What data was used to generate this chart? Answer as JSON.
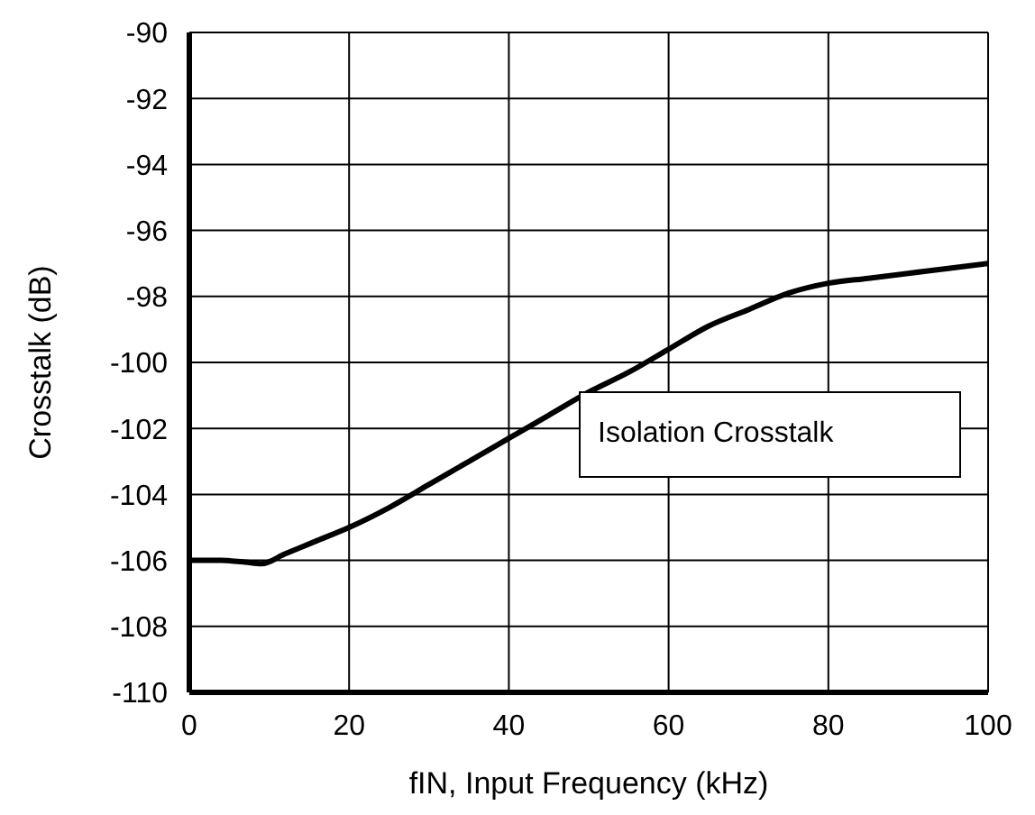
{
  "chart_data": {
    "type": "line",
    "xlabel": "fIN, Input Frequency (kHz)",
    "ylabel": "Crosstalk (dB)",
    "x": [
      0,
      4,
      7,
      9,
      12,
      16,
      20,
      25,
      30,
      35,
      40,
      45,
      50,
      55,
      60,
      65,
      70,
      75,
      80,
      85,
      90,
      95,
      100
    ],
    "series": [
      {
        "name": "Isolation Crosstalk",
        "color": "#000000",
        "values": [
          -106,
          -106,
          -106.05,
          -106.1,
          -105.8,
          -105.4,
          -105,
          -104.4,
          -103.7,
          -103,
          -102.3,
          -101.6,
          -100.9,
          -100.3,
          -99.6,
          -98.9,
          -98.4,
          -97.9,
          -97.6,
          -97.45,
          -97.3,
          -97.15,
          -97
        ]
      }
    ],
    "xlim": [
      0,
      100
    ],
    "xticks": [
      0,
      20,
      40,
      60,
      80,
      100
    ],
    "ylim": [
      -110,
      -90
    ],
    "yticks": [
      -110,
      -108,
      -106,
      -104,
      -102,
      -100,
      -98,
      -96,
      -94,
      -92,
      -90
    ],
    "grid": true,
    "legend": "right",
    "marker": "none",
    "line_style": "solid"
  }
}
